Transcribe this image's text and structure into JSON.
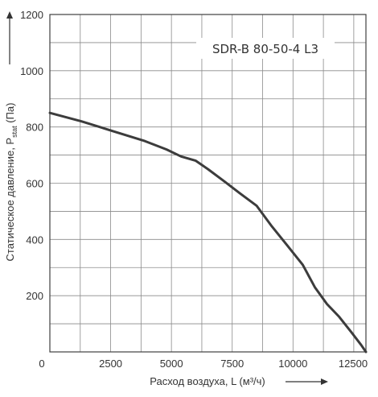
{
  "chart_data": {
    "type": "line",
    "title": "",
    "model_label": "SDR-B 80-50-4 L3",
    "xlabel": "Расход воздуха, L (м³/ч)",
    "ylabel_main": "Статическое давление, P",
    "ylabel_sub": "stat",
    "ylabel_unit": " (Па)",
    "xlim": [
      0,
      13000
    ],
    "ylim": [
      0,
      1200
    ],
    "x_ticks": [
      0,
      2500,
      5000,
      7500,
      10000,
      12500
    ],
    "y_ticks": [
      200,
      400,
      600,
      800,
      1000,
      1200
    ],
    "grid": true,
    "series": [
      {
        "color": "#3c3c3c",
        "x": [
          0,
          1300,
          2600,
          3900,
          4800,
          5400,
          6000,
          6500,
          7200,
          7800,
          8500,
          9100,
          9750,
          10400,
          10900,
          11400,
          11900,
          12400,
          12800,
          13000
        ],
        "y": [
          850,
          820,
          785,
          750,
          720,
          695,
          680,
          650,
          605,
          565,
          520,
          450,
          380,
          310,
          230,
          170,
          125,
          70,
          25,
          0
        ]
      }
    ]
  }
}
